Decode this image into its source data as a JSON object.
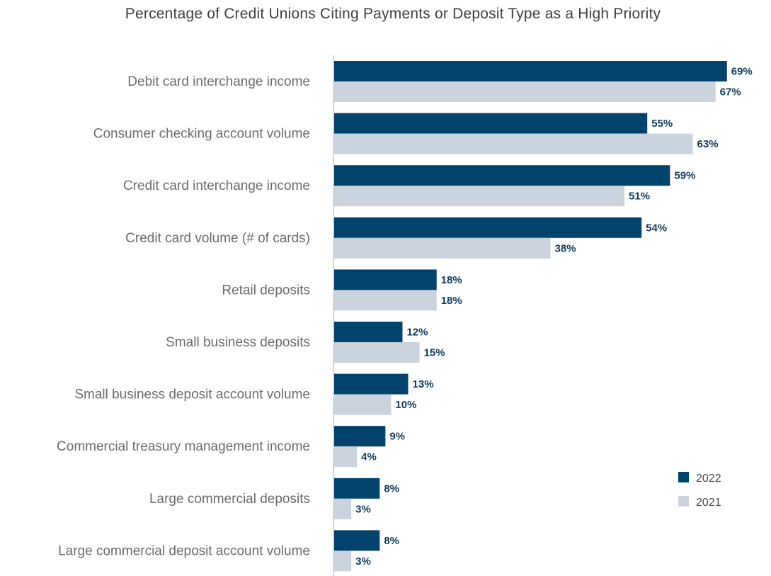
{
  "chart_data": {
    "type": "bar",
    "orientation": "horizontal",
    "title": "Percentage of Credit Unions Citing Payments or Deposit Type as a High Priority",
    "xlabel": "",
    "ylabel": "",
    "xlim": [
      0,
      70
    ],
    "grid": false,
    "legend_position": "bottom-right",
    "categories": [
      "Debit card interchange income",
      "Consumer checking account volume",
      "Credit card interchange income",
      "Credit card volume (# of cards)",
      "Retail deposits",
      "Small business deposits",
      "Small business deposit account volume",
      "Commercial treasury management income",
      "Large commercial deposits",
      "Large commercial deposit account volume"
    ],
    "series": [
      {
        "name": "2022",
        "color": "#00446e",
        "values": [
          69,
          55,
          59,
          54,
          18,
          12,
          13,
          9,
          8,
          8
        ],
        "labels": [
          "69%",
          "55%",
          "59%",
          "54%",
          "18%",
          "12%",
          "13%",
          "9%",
          "8%",
          "8%"
        ]
      },
      {
        "name": "2021",
        "color": "#cbd3de",
        "values": [
          67,
          63,
          51,
          38,
          18,
          15,
          10,
          4,
          3,
          3
        ],
        "labels": [
          "67%",
          "63%",
          "51%",
          "38%",
          "18%",
          "15%",
          "10%",
          "4%",
          "3%",
          "3%"
        ]
      }
    ],
    "label_color": "#0f3a5f",
    "axis_color": "#c8c8c8"
  }
}
